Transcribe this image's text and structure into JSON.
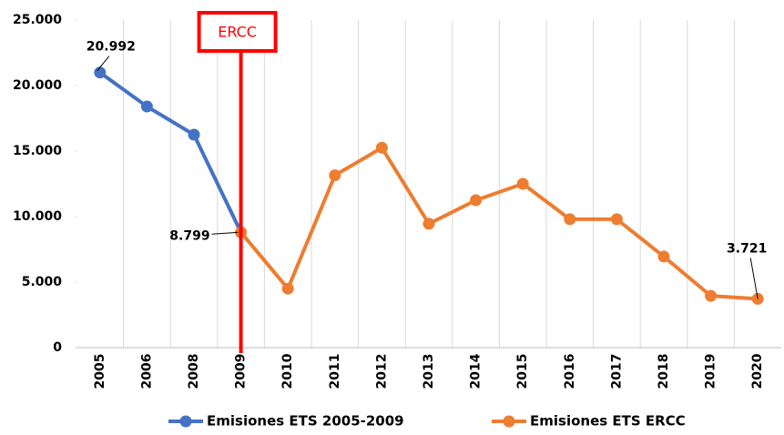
{
  "chart_data": {
    "type": "line",
    "categories": [
      "2005",
      "2006",
      "2008",
      "2009",
      "2010",
      "2011",
      "2012",
      "2013",
      "2014",
      "2015",
      "2016",
      "2017",
      "2018",
      "2019",
      "2020"
    ],
    "series": [
      {
        "name": "Emisiones ETS 2005-2009",
        "color": "#4472c4",
        "values": [
          20992,
          18400,
          16250,
          8799,
          null,
          null,
          null,
          null,
          null,
          null,
          null,
          null,
          null,
          null,
          null
        ],
        "value_labels": [
          "20.992",
          null,
          null,
          "8.799",
          null,
          null,
          null,
          null,
          null,
          null,
          null,
          null,
          null,
          null,
          null
        ]
      },
      {
        "name": "Emisiones ETS ERCC",
        "color": "#ed7d31",
        "values": [
          null,
          null,
          null,
          8799,
          4500,
          13150,
          15250,
          9450,
          11250,
          12500,
          9800,
          9800,
          6950,
          3950,
          3721
        ],
        "value_labels": [
          null,
          null,
          null,
          null,
          null,
          null,
          null,
          null,
          null,
          null,
          null,
          null,
          null,
          null,
          "3.721"
        ]
      }
    ],
    "ylim": [
      0,
      25000
    ],
    "yticks": [
      0,
      {
        "value": 5000,
        "label": "5.000"
      },
      {
        "value": 10000,
        "label": "10.000"
      },
      {
        "value": 15000,
        "label": "15.000"
      },
      {
        "value": 20000,
        "label": "20.000"
      },
      {
        "value": 25000,
        "label": "25.000"
      }
    ],
    "vertical_line": {
      "label": "ERCC",
      "at": "2009",
      "color": "#ff0000"
    },
    "legend": "bottom"
  }
}
